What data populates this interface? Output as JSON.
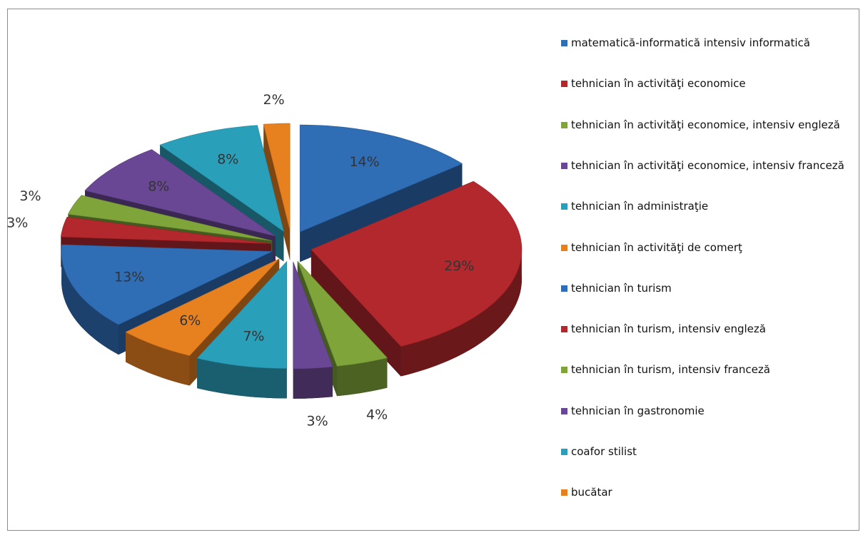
{
  "chart_data": {
    "type": "pie",
    "categories": [
      "matematică-informatică intensiv informatică",
      "tehnician în activităţi economice",
      "tehnician în activităţi economice, intensiv engleză",
      "tehnician în activităţi economice, intensiv franceză",
      "tehnician în administraţie",
      "tehnician în activităţi de comerţ",
      "tehnician în turism",
      "tehnician în turism, intensiv engleză",
      "tehnician în turism, intensiv franceză",
      "tehnician în gastronomie",
      "coafor stilist",
      "bucătar"
    ],
    "values": [
      14,
      29,
      4,
      3,
      7,
      6,
      13,
      3,
      3,
      8,
      8,
      2
    ],
    "value_labels": [
      "14%",
      "29%",
      "4%",
      "3%",
      "7%",
      "6%",
      "13%",
      "3%",
      "3%",
      "8%",
      "8%",
      "2%"
    ],
    "colors": [
      "#2f6db5",
      "#b3282d",
      "#7ea43a",
      "#6a4795",
      "#2a9fb9",
      "#e7801f",
      "#2f6db5",
      "#b3282d",
      "#7ea43a",
      "#6a4795",
      "#2a9fb9",
      "#e7801f"
    ],
    "legend": "right"
  }
}
